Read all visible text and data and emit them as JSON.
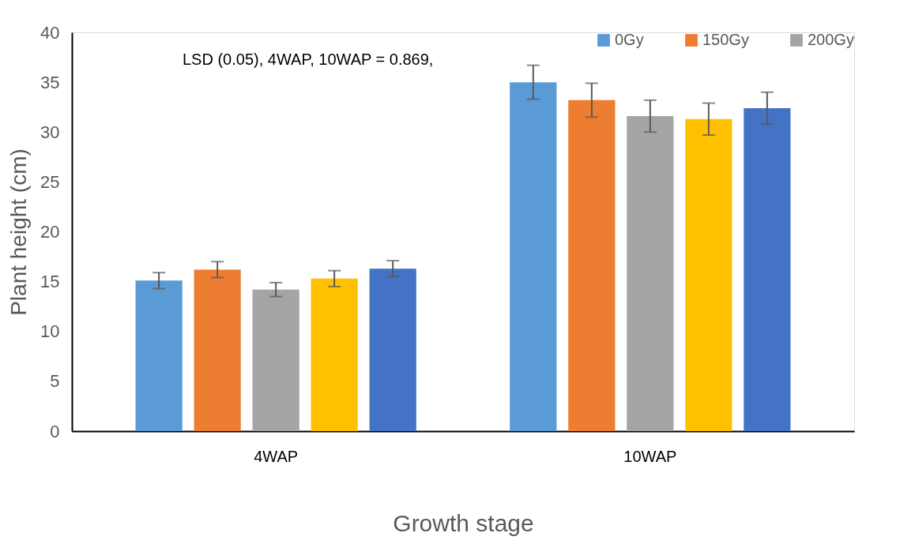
{
  "chart_data": {
    "type": "bar",
    "xlabel": "Growth stage",
    "ylabel": "Plant height  (cm)",
    "categories": [
      "4WAP",
      "10WAP"
    ],
    "series": [
      {
        "name": "0Gy",
        "color": "#5b9bd5",
        "values": [
          15.1,
          35.0
        ],
        "errors": [
          0.8,
          1.7
        ]
      },
      {
        "name": "150Gy",
        "color": "#ed7d31",
        "values": [
          16.2,
          33.2
        ],
        "errors": [
          0.8,
          1.7
        ]
      },
      {
        "name": "200Gy",
        "color": "#a5a5a5",
        "values": [
          14.2,
          31.6
        ],
        "errors": [
          0.7,
          1.6
        ]
      },
      {
        "color": "#ffc000",
        "values": [
          15.3,
          31.3
        ],
        "errors": [
          0.8,
          1.6
        ]
      },
      {
        "color": "#4472c4",
        "values": [
          16.3,
          32.4
        ],
        "errors": [
          0.8,
          1.6
        ]
      }
    ],
    "ylim": [
      0,
      40
    ],
    "yticks": [
      0,
      5,
      10,
      15,
      20,
      25,
      30,
      35,
      40
    ],
    "grid": false,
    "legend": "top right",
    "annotations": [
      "LSD (0.05), 4WAP, 10WAP = 0.869,"
    ]
  }
}
